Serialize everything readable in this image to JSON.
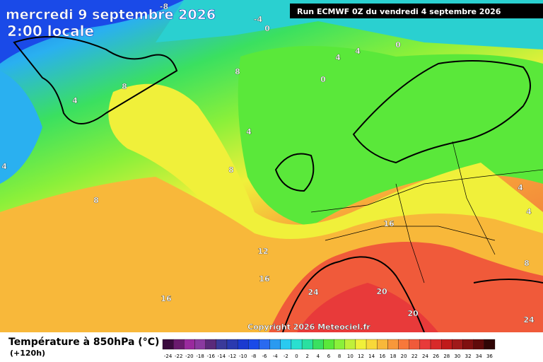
{
  "header": {
    "date": "mercredi 9 septembre 2026",
    "time": "2:00 locale",
    "run": "Run ECMWF 0Z du vendredi 4 septembre 2026",
    "copyright": "Copyright 2026 Meteociel.fr"
  },
  "legend": {
    "title": "Température à 850hPa (°C)",
    "subtitle": "(+120h)",
    "labels": [
      -24,
      -22,
      -20,
      -18,
      -16,
      -14,
      -12,
      -10,
      -8,
      -6,
      -4,
      -2,
      0,
      2,
      4,
      6,
      8,
      10,
      12,
      14,
      16,
      18,
      20,
      22,
      24,
      26,
      28,
      30,
      32,
      34,
      36
    ],
    "colors": [
      "#3a0a3e",
      "#6a1a6e",
      "#9a2a9e",
      "#8a3aa0",
      "#5a2a7a",
      "#3a3a9a",
      "#2a3ab0",
      "#1a3ad0",
      "#1a4ae8",
      "#2a6af0",
      "#2a9af0",
      "#2acaf0",
      "#2ae0d0",
      "#2ae0a0",
      "#3ae060",
      "#5ae83a",
      "#8af03a",
      "#c0f03a",
      "#f0f03a",
      "#f8d83a",
      "#f8b83a",
      "#f8983a",
      "#f8783a",
      "#f05a3a",
      "#e83a3a",
      "#d82a2a",
      "#c01a1a",
      "#a01a1a",
      "#801010",
      "#600a0a",
      "#300505"
    ]
  },
  "contour_labels": [
    -8,
    -4,
    0,
    0,
    4,
    4,
    8,
    0,
    8,
    4,
    4,
    8,
    8,
    4,
    4,
    16,
    12,
    16,
    8,
    16,
    24,
    20,
    20,
    24,
    4
  ]
}
